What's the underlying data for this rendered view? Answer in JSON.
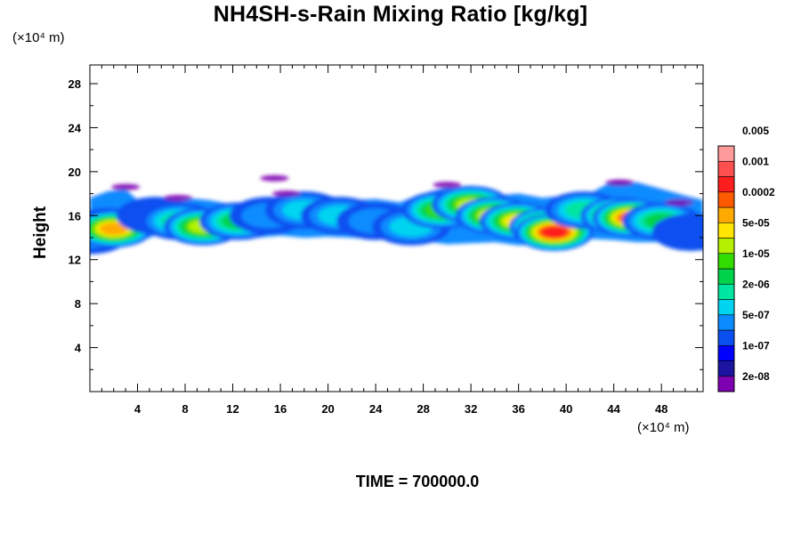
{
  "chart_data": {
    "type": "heatmap",
    "title": "NH4SH-s-Rain Mixing Ratio [kg/kg]",
    "ylabel": "Height",
    "xlabel": "",
    "x_unit": "(×10⁴ m)",
    "y_unit": "(×10⁴ m)",
    "xlim": [
      0,
      51.5
    ],
    "ylim": [
      0,
      29.7
    ],
    "x_ticks": [
      4,
      8,
      12,
      16,
      20,
      24,
      28,
      32,
      36,
      40,
      44,
      48
    ],
    "y_ticks": [
      4,
      8,
      12,
      16,
      20,
      24,
      28
    ],
    "grid": false,
    "footer": "TIME = 700000.0",
    "colorbar": {
      "colors": [
        "#7f00b2",
        "#1c14a0",
        "#0000ff",
        "#0a50f0",
        "#0a8cff",
        "#00d4f0",
        "#00e6a0",
        "#00d24a",
        "#32dc00",
        "#b4f000",
        "#ffe600",
        "#ffaa00",
        "#ff5a00",
        "#ff1e1e",
        "#ff5050",
        "#ff9a9a"
      ],
      "labels": [
        "2e-08",
        "1e-07",
        "5e-07",
        "2e-06",
        "1e-05",
        "5e-05",
        "0.0002",
        "0.001",
        "0.005"
      ],
      "label_band_index": [
        1,
        3,
        5,
        7,
        9,
        11,
        13,
        15,
        17
      ]
    },
    "field_description": "mixing ratio band between roughly 13e4 m and 19e4 m height across full domain",
    "cells": [
      {
        "x": 0.0,
        "y": 14.2,
        "level": 4
      },
      {
        "x": 1.5,
        "y": 15.0,
        "level": 6
      },
      {
        "x": 2.0,
        "y": 14.8,
        "level": 11
      },
      {
        "x": 3.2,
        "y": 16.5,
        "level": 2
      },
      {
        "x": 5.5,
        "y": 16.0,
        "level": 3
      },
      {
        "x": 7.5,
        "y": 15.5,
        "level": 6
      },
      {
        "x": 9.5,
        "y": 15.0,
        "level": 9
      },
      {
        "x": 12.5,
        "y": 15.5,
        "level": 7
      },
      {
        "x": 15.0,
        "y": 16.0,
        "level": 4
      },
      {
        "x": 18.0,
        "y": 16.5,
        "level": 5
      },
      {
        "x": 21.0,
        "y": 16.0,
        "level": 5
      },
      {
        "x": 24.0,
        "y": 15.5,
        "level": 4
      },
      {
        "x": 27.0,
        "y": 15.0,
        "level": 5
      },
      {
        "x": 29.5,
        "y": 16.5,
        "level": 8
      },
      {
        "x": 32.0,
        "y": 17.0,
        "level": 9
      },
      {
        "x": 34.0,
        "y": 16.0,
        "level": 10
      },
      {
        "x": 36.0,
        "y": 15.5,
        "level": 10
      },
      {
        "x": 38.5,
        "y": 15.0,
        "level": 12
      },
      {
        "x": 39.0,
        "y": 14.5,
        "level": 13
      },
      {
        "x": 41.5,
        "y": 16.5,
        "level": 6
      },
      {
        "x": 44.5,
        "y": 16.0,
        "level": 11
      },
      {
        "x": 45.5,
        "y": 15.8,
        "level": 12
      },
      {
        "x": 48.0,
        "y": 15.5,
        "level": 7
      },
      {
        "x": 50.5,
        "y": 14.5,
        "level": 3
      }
    ]
  }
}
